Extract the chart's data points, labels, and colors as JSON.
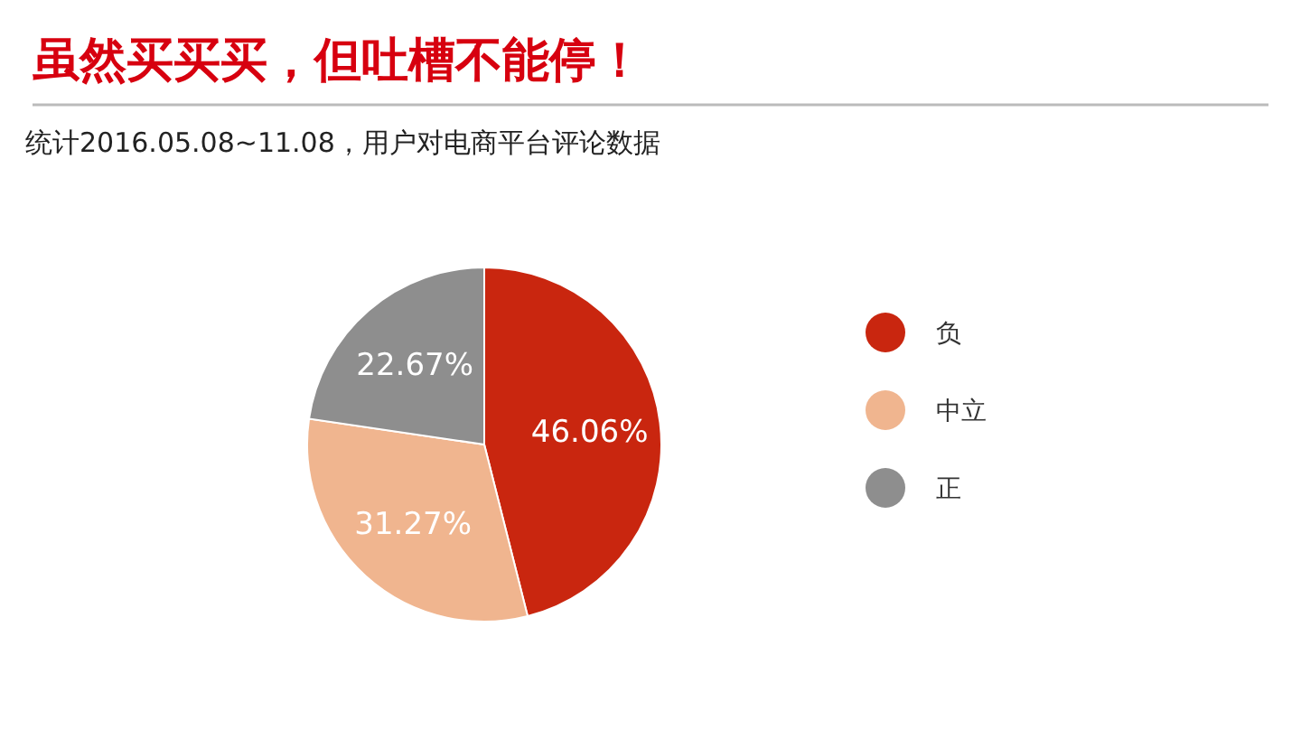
{
  "chart_data": {
    "type": "pie",
    "title": "虽然买买买，但吐槽不能停！",
    "subtitle": "统计2016.05.08~11.08，用户对电商平台评论数据",
    "categories": [
      "负",
      "中立",
      "正"
    ],
    "values": [
      46.06,
      31.27,
      22.67
    ],
    "colors": [
      "#c9260f",
      "#f0b58f",
      "#8e8e8e"
    ],
    "value_labels": [
      "46.06%",
      "31.27%",
      "22.67%"
    ],
    "legend": "right"
  }
}
